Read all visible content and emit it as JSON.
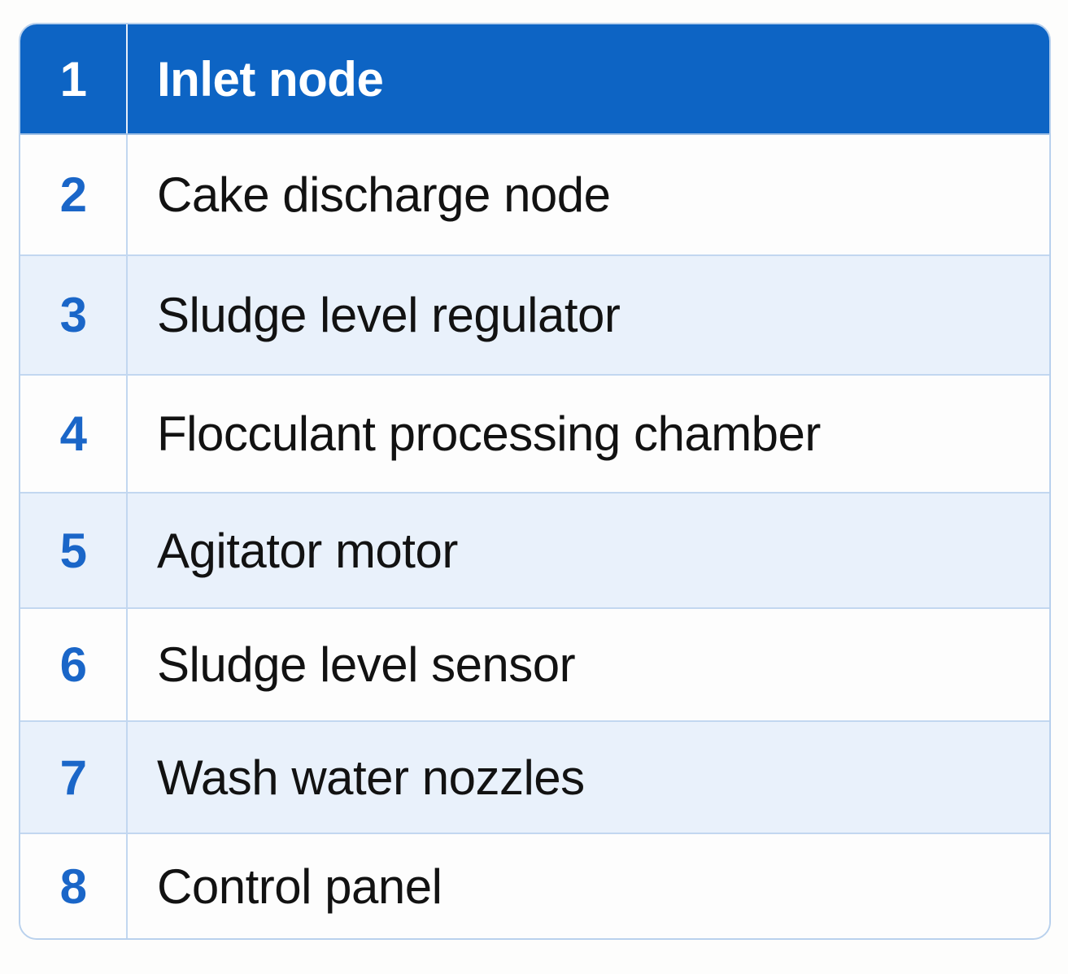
{
  "legend": {
    "rows": [
      {
        "num": "1",
        "label": "Inlet node",
        "selected": true
      },
      {
        "num": "2",
        "label": "Cake discharge node",
        "selected": false
      },
      {
        "num": "3",
        "label": "Sludge level regulator",
        "selected": false
      },
      {
        "num": "4",
        "label": "Flocculant processing chamber",
        "selected": false
      },
      {
        "num": "5",
        "label": "Agitator motor",
        "selected": false
      },
      {
        "num": "6",
        "label": "Sludge level sensor",
        "selected": false
      },
      {
        "num": "7",
        "label": "Wash water nozzles",
        "selected": false
      },
      {
        "num": "8",
        "label": "Control panel",
        "selected": false
      }
    ]
  },
  "colors": {
    "header_bg": "#0D64C4",
    "header_text": "#FFFFFF",
    "number_text": "#1A66C8",
    "row_bg": "#FDFDFD",
    "alt_row_bg": "#E9F1FB",
    "divider": "#C2D7F0",
    "outer_border": "#B9D1ED",
    "label_text": "#121212"
  }
}
